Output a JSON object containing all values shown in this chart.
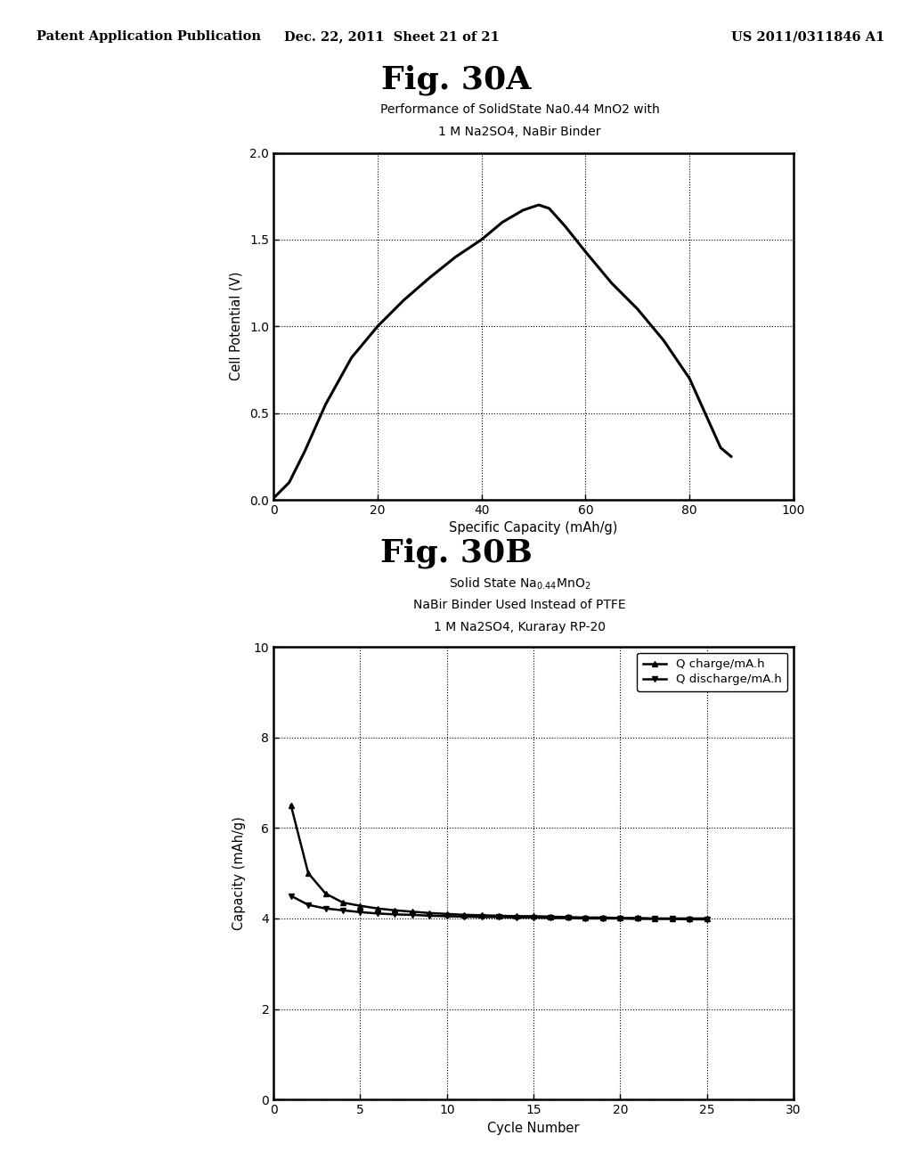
{
  "header_left": "Patent Application Publication",
  "header_center": "Dec. 22, 2011  Sheet 21 of 21",
  "header_right": "US 2011/0311846 A1",
  "fig_a_title": "Fig. 30A",
  "fig_b_title": "Fig. 30B",
  "plot_a": {
    "title_line1": "Performance of SolidState Na0.44 MnO2 with",
    "title_line2": "1 M Na2SO4, NaBir Binder",
    "xlabel": "Specific Capacity (mAh/g)",
    "ylabel": "Cell Potential (V)",
    "xlim": [
      0,
      100
    ],
    "ylim": [
      0,
      2
    ],
    "xticks": [
      0,
      20,
      40,
      60,
      80,
      100
    ],
    "yticks": [
      0,
      0.5,
      1.0,
      1.5,
      2.0
    ],
    "x": [
      0,
      3,
      6,
      10,
      15,
      20,
      25,
      30,
      35,
      40,
      44,
      48,
      51,
      53,
      56,
      60,
      65,
      70,
      75,
      80,
      83,
      86,
      88
    ],
    "y": [
      0.01,
      0.1,
      0.28,
      0.55,
      0.82,
      1.0,
      1.15,
      1.28,
      1.4,
      1.5,
      1.6,
      1.67,
      1.7,
      1.68,
      1.58,
      1.43,
      1.25,
      1.1,
      0.92,
      0.7,
      0.5,
      0.3,
      0.25
    ]
  },
  "plot_b": {
    "title_line1": "Solid State Na$_{0.44}$MnO$_2$",
    "title_line2": "NaBir Binder Used Instead of PTFE",
    "title_line3": "1 M Na2SO4, Kuraray RP-20",
    "xlabel": "Cycle Number",
    "ylabel": "Capacity (mAh/g)",
    "xlim": [
      0,
      30
    ],
    "ylim": [
      0,
      10
    ],
    "xticks": [
      0,
      5,
      10,
      15,
      20,
      25,
      30
    ],
    "yticks": [
      0,
      2,
      4,
      6,
      8,
      10
    ],
    "legend_charge": "Q charge/mA.h",
    "legend_discharge": "Q discharge/mA.h",
    "charge_x": [
      1,
      2,
      3,
      4,
      5,
      6,
      7,
      8,
      9,
      10,
      11,
      12,
      13,
      14,
      15,
      16,
      17,
      18,
      19,
      20,
      21,
      22,
      23,
      24,
      25
    ],
    "charge_y": [
      6.5,
      5.0,
      4.55,
      4.35,
      4.28,
      4.22,
      4.18,
      4.15,
      4.12,
      4.1,
      4.08,
      4.07,
      4.06,
      4.05,
      4.05,
      4.04,
      4.03,
      4.02,
      4.02,
      4.01,
      4.01,
      4.0,
      4.0,
      4.0,
      4.0
    ],
    "discharge_x": [
      1,
      2,
      3,
      4,
      5,
      6,
      7,
      8,
      9,
      10,
      11,
      12,
      13,
      14,
      15,
      16,
      17,
      18,
      19,
      20,
      21,
      22,
      23,
      24,
      25
    ],
    "discharge_y": [
      4.5,
      4.3,
      4.22,
      4.18,
      4.14,
      4.11,
      4.09,
      4.08,
      4.06,
      4.05,
      4.04,
      4.03,
      4.03,
      4.02,
      4.02,
      4.01,
      4.01,
      4.0,
      4.0,
      4.0,
      3.99,
      3.99,
      3.99,
      3.98,
      3.98
    ]
  }
}
